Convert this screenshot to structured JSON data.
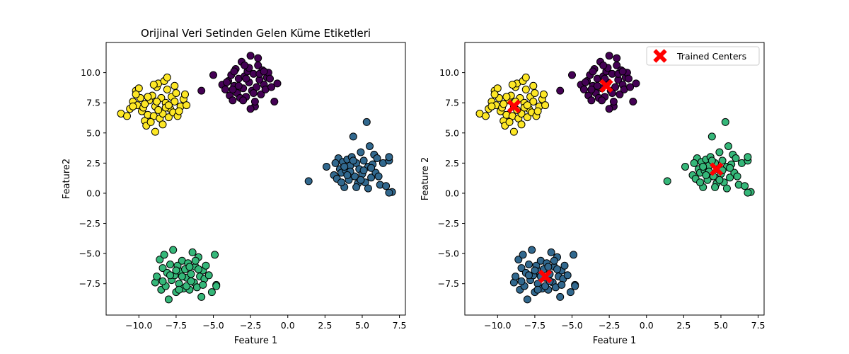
{
  "chart_data": [
    {
      "type": "scatter",
      "title": "Orijinal Veri Setinden Gelen Küme Etiketleri",
      "xlabel": "Feature 1",
      "ylabel": "Feature2",
      "xlim": [
        -12.2,
        7.9
      ],
      "ylim": [
        -10.1,
        12.5
      ],
      "xticks": [
        -10.0,
        -7.5,
        -5.0,
        -2.5,
        0.0,
        2.5,
        5.0,
        7.5
      ],
      "xtick_labels": [
        "−10.0",
        "−7.5",
        "−5.0",
        "−2.5",
        "0.0",
        "2.5",
        "5.0",
        "7.5"
      ],
      "yticks": [
        -7.5,
        -5.0,
        -2.5,
        0.0,
        2.5,
        5.0,
        7.5,
        10.0
      ],
      "ytick_labels": [
        "−7.5",
        "−5.0",
        "−2.5",
        "0.0",
        "2.5",
        "5.0",
        "7.5",
        "10.0"
      ],
      "grid": false,
      "series": [
        {
          "color": "#fde725",
          "points": [
            [
              -11.2,
              6.6
            ],
            [
              -10.8,
              6.4
            ],
            [
              -10.6,
              7.0
            ],
            [
              -10.4,
              7.6
            ],
            [
              -10.2,
              8.5
            ],
            [
              -10.1,
              7.3
            ],
            [
              -9.9,
              7.9
            ],
            [
              -9.8,
              6.8
            ],
            [
              -9.7,
              7.1
            ],
            [
              -9.6,
              6.0
            ],
            [
              -9.5,
              5.6
            ],
            [
              -9.4,
              6.5
            ],
            [
              -9.3,
              7.7
            ],
            [
              -9.1,
              8.1
            ],
            [
              -9.0,
              6.4
            ],
            [
              -8.9,
              7.2
            ],
            [
              -8.8,
              8.8
            ],
            [
              -8.7,
              9.1
            ],
            [
              -8.6,
              6.2
            ],
            [
              -8.5,
              7.9
            ],
            [
              -8.4,
              6.6
            ],
            [
              -8.3,
              9.3
            ],
            [
              -8.2,
              7.5
            ],
            [
              -8.1,
              8.6
            ],
            [
              -8.0,
              6.3
            ],
            [
              -7.9,
              7.0
            ],
            [
              -7.8,
              8.0
            ],
            [
              -7.7,
              6.7
            ],
            [
              -7.6,
              7.6
            ],
            [
              -7.5,
              8.3
            ],
            [
              -7.4,
              6.4
            ],
            [
              -7.2,
              7.2
            ],
            [
              -7.0,
              7.8
            ],
            [
              -6.8,
              7.3
            ],
            [
              -8.4,
              5.7
            ],
            [
              -8.9,
              5.1
            ],
            [
              -9.2,
              5.9
            ],
            [
              -10.0,
              8.7
            ],
            [
              -8.1,
              9.6
            ],
            [
              -7.3,
              6.8
            ],
            [
              -9.6,
              7.4
            ],
            [
              -8.7,
              6.9
            ],
            [
              -8.2,
              7.1
            ],
            [
              -6.9,
              8.2
            ],
            [
              -9.4,
              8.0
            ],
            [
              -8.0,
              7.3
            ],
            [
              -8.8,
              7.6
            ],
            [
              -10.2,
              8.2
            ],
            [
              -9.0,
              9.0
            ],
            [
              -7.6,
              8.9
            ],
            [
              -10.4,
              7.2
            ]
          ]
        },
        {
          "color": "#440154",
          "points": [
            [
              -5.0,
              9.8
            ],
            [
              -4.4,
              9.0
            ],
            [
              -4.2,
              8.6
            ],
            [
              -4.0,
              9.3
            ],
            [
              -3.9,
              8.1
            ],
            [
              -3.8,
              9.8
            ],
            [
              -3.7,
              7.7
            ],
            [
              -3.6,
              8.9
            ],
            [
              -3.5,
              10.3
            ],
            [
              -3.4,
              8.3
            ],
            [
              -3.3,
              9.5
            ],
            [
              -3.2,
              7.9
            ],
            [
              -3.1,
              10.9
            ],
            [
              -3.0,
              8.7
            ],
            [
              -2.9,
              9.7
            ],
            [
              -2.8,
              8.0
            ],
            [
              -2.7,
              10.1
            ],
            [
              -2.6,
              9.2
            ],
            [
              -2.5,
              11.4
            ],
            [
              -2.4,
              8.5
            ],
            [
              -2.3,
              9.9
            ],
            [
              -2.2,
              7.2
            ],
            [
              -2.1,
              8.8
            ],
            [
              -2.0,
              10.6
            ],
            [
              -1.9,
              9.4
            ],
            [
              -1.8,
              8.2
            ],
            [
              -1.7,
              10.2
            ],
            [
              -1.6,
              9.0
            ],
            [
              -1.5,
              8.6
            ],
            [
              -1.4,
              9.6
            ],
            [
              -1.3,
              10.0
            ],
            [
              -1.1,
              8.8
            ],
            [
              -0.9,
              7.6
            ],
            [
              -0.7,
              9.1
            ],
            [
              -3.0,
              7.7
            ],
            [
              -2.5,
              7.0
            ],
            [
              -2.0,
              11.2
            ],
            [
              -3.6,
              10.1
            ],
            [
              -4.1,
              9.2
            ],
            [
              -2.8,
              9.5
            ],
            [
              -2.3,
              8.3
            ],
            [
              -1.9,
              9.9
            ],
            [
              -3.3,
              8.9
            ],
            [
              -2.6,
              10.4
            ],
            [
              -1.6,
              10.1
            ],
            [
              -3.7,
              8.6
            ],
            [
              -5.8,
              8.5
            ],
            [
              -2.2,
              7.6
            ],
            [
              -2.9,
              10.6
            ],
            [
              -1.2,
              9.5
            ]
          ]
        },
        {
          "color": "#31688e",
          "points": [
            [
              1.4,
              1.0
            ],
            [
              2.6,
              2.2
            ],
            [
              3.1,
              1.5
            ],
            [
              3.3,
              1.2
            ],
            [
              3.4,
              2.9
            ],
            [
              3.5,
              2.0
            ],
            [
              3.6,
              1.7
            ],
            [
              3.7,
              2.6
            ],
            [
              3.8,
              0.5
            ],
            [
              3.9,
              1.9
            ],
            [
              4.0,
              2.8
            ],
            [
              4.1,
              1.1
            ],
            [
              4.2,
              2.3
            ],
            [
              4.3,
              3.0
            ],
            [
              4.4,
              4.7
            ],
            [
              4.5,
              1.4
            ],
            [
              4.6,
              2.5
            ],
            [
              4.7,
              0.8
            ],
            [
              4.8,
              2.0
            ],
            [
              4.9,
              3.4
            ],
            [
              5.0,
              1.6
            ],
            [
              5.1,
              2.7
            ],
            [
              5.2,
              0.9
            ],
            [
              5.3,
              5.9
            ],
            [
              5.4,
              2.2
            ],
            [
              5.5,
              3.9
            ],
            [
              5.6,
              1.3
            ],
            [
              5.7,
              2.4
            ],
            [
              5.8,
              3.2
            ],
            [
              5.9,
              1.7
            ],
            [
              6.0,
              2.9
            ],
            [
              6.2,
              0.7
            ],
            [
              6.4,
              2.5
            ],
            [
              6.6,
              0.6
            ],
            [
              6.8,
              2.7
            ],
            [
              6.8,
              3.0
            ],
            [
              7.0,
              0.1
            ],
            [
              6.8,
              0.05
            ],
            [
              4.6,
              0.5
            ],
            [
              5.4,
              0.4
            ],
            [
              4.2,
              1.8
            ],
            [
              3.8,
              2.2
            ],
            [
              4.9,
              1.1
            ],
            [
              5.6,
              2.1
            ],
            [
              3.2,
              2.5
            ],
            [
              4.4,
              2.7
            ],
            [
              5.1,
              1.9
            ],
            [
              6.1,
              1.4
            ],
            [
              3.6,
              0.9
            ],
            [
              4.0,
              1.5
            ]
          ]
        },
        {
          "color": "#35b779",
          "points": [
            [
              -8.9,
              -7.4
            ],
            [
              -8.8,
              -6.9
            ],
            [
              -8.6,
              -5.5
            ],
            [
              -8.5,
              -8.0
            ],
            [
              -8.4,
              -6.2
            ],
            [
              -8.3,
              -5.1
            ],
            [
              -8.2,
              -7.7
            ],
            [
              -8.1,
              -6.6
            ],
            [
              -8.0,
              -8.8
            ],
            [
              -7.9,
              -5.9
            ],
            [
              -7.8,
              -7.2
            ],
            [
              -7.7,
              -4.7
            ],
            [
              -7.6,
              -6.8
            ],
            [
              -7.5,
              -8.2
            ],
            [
              -7.4,
              -6.0
            ],
            [
              -7.3,
              -7.5
            ],
            [
              -7.2,
              -6.5
            ],
            [
              -7.1,
              -5.6
            ],
            [
              -7.0,
              -7.9
            ],
            [
              -6.9,
              -6.3
            ],
            [
              -6.8,
              -7.0
            ],
            [
              -6.7,
              -5.8
            ],
            [
              -6.6,
              -8.0
            ],
            [
              -6.5,
              -6.7
            ],
            [
              -6.4,
              -4.9
            ],
            [
              -6.3,
              -7.4
            ],
            [
              -6.2,
              -6.1
            ],
            [
              -6.1,
              -7.8
            ],
            [
              -6.0,
              -5.3
            ],
            [
              -5.9,
              -6.9
            ],
            [
              -5.8,
              -8.6
            ],
            [
              -5.7,
              -6.4
            ],
            [
              -5.6,
              -7.1
            ],
            [
              -5.5,
              -6.0
            ],
            [
              -5.3,
              -6.8
            ],
            [
              -5.1,
              -8.2
            ],
            [
              -4.9,
              -5.1
            ],
            [
              -4.8,
              -7.6
            ],
            [
              -6.8,
              -7.7
            ],
            [
              -7.5,
              -6.4
            ],
            [
              -6.2,
              -5.6
            ],
            [
              -7.9,
              -6.8
            ],
            [
              -6.5,
              -7.3
            ],
            [
              -7.1,
              -6.9
            ],
            [
              -5.7,
              -7.6
            ],
            [
              -8.4,
              -7.3
            ],
            [
              -6.0,
              -6.3
            ],
            [
              -7.3,
              -8.0
            ],
            [
              -6.6,
              -6.1
            ],
            [
              -4.8,
              -7.7
            ]
          ]
        }
      ]
    },
    {
      "type": "scatter",
      "title": "",
      "xlabel": "Feature 1",
      "ylabel": "Feature 2",
      "xlim": [
        -12.2,
        7.9
      ],
      "ylim": [
        -10.1,
        12.5
      ],
      "xticks": [
        -10.0,
        -7.5,
        -5.0,
        -2.5,
        0.0,
        2.5,
        5.0,
        7.5
      ],
      "xtick_labels": [
        "−10.0",
        "−7.5",
        "−5.0",
        "−2.5",
        "0.0",
        "2.5",
        "5.0",
        "7.5"
      ],
      "yticks": [
        -7.5,
        -5.0,
        -2.5,
        0.0,
        2.5,
        5.0,
        7.5,
        10.0
      ],
      "ytick_labels": [
        "−7.5",
        "−5.0",
        "−2.5",
        "0.0",
        "2.5",
        "5.0",
        "7.5",
        "10.0"
      ],
      "grid": false,
      "legend": {
        "placement": "top-right",
        "label": "Trained Centers",
        "color": "#ff0000",
        "marker": "X"
      },
      "centers": [
        [
          -8.9,
          7.2
        ],
        [
          -2.7,
          8.9
        ],
        [
          4.7,
          2.0
        ],
        [
          -6.8,
          -6.9
        ]
      ],
      "series": [
        {
          "color": "#fde725",
          "same_points_as_left_series": 0
        },
        {
          "color": "#440154",
          "same_points_as_left_series": 1
        },
        {
          "color": "#35b779",
          "same_points_as_left_series": 2
        },
        {
          "color": "#31688e",
          "same_points_as_left_series": 3
        }
      ]
    }
  ]
}
